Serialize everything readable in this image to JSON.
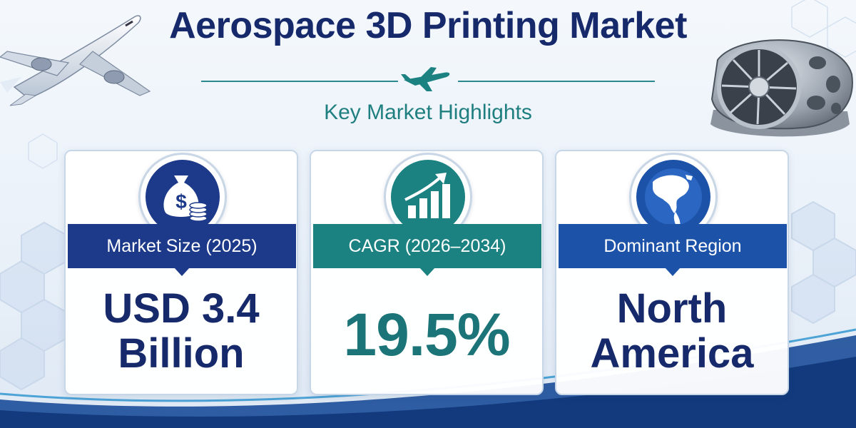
{
  "header": {
    "title": "Aerospace 3D Printing Market",
    "subtitle": "Key Market Highlights"
  },
  "cards": [
    {
      "label": "Market Size (2025)",
      "value_line1": "USD 3.4",
      "value_line2": "Billion",
      "icon": "money-bag-icon"
    },
    {
      "label": "CAGR (2026–2034)",
      "value_line1": "19.5%",
      "icon": "growth-chart-icon"
    },
    {
      "label": "Dominant Region",
      "value_line1": "North",
      "value_line2": "America",
      "icon": "globe-icon"
    }
  ],
  "colors": {
    "navy": "#16296b",
    "teal": "#1b8281",
    "blue": "#1c52a8"
  }
}
